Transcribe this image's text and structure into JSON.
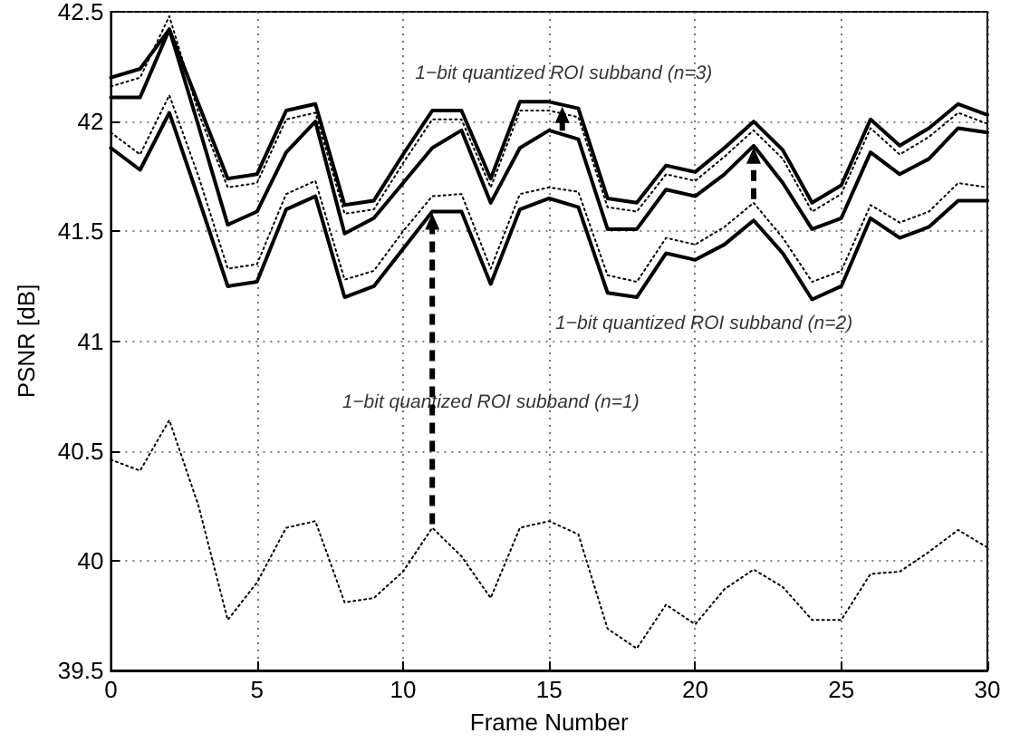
{
  "chart_data": {
    "type": "line",
    "xlabel": "Frame Number",
    "ylabel": "PSNR [dB]",
    "x": [
      0,
      1,
      2,
      3,
      4,
      5,
      6,
      7,
      8,
      9,
      10,
      11,
      12,
      13,
      14,
      15,
      16,
      17,
      18,
      19,
      20,
      21,
      22,
      23,
      24,
      25,
      26,
      27,
      28,
      29,
      30
    ],
    "series": [
      {
        "color": "#000000",
        "line_style": "solid",
        "values": [
          42.2,
          42.24,
          42.42,
          42.08,
          41.74,
          41.76,
          42.05,
          42.08,
          41.62,
          41.64,
          41.85,
          42.05,
          42.05,
          41.74,
          42.09,
          42.09,
          42.06,
          41.65,
          41.63,
          41.8,
          41.77,
          41.88,
          42.0,
          41.87,
          41.63,
          41.71,
          42.01,
          41.89,
          41.97,
          42.08,
          42.03
        ]
      },
      {
        "color": "#000000",
        "line_style": "dotted",
        "values": [
          42.16,
          42.2,
          42.48,
          42.04,
          41.7,
          41.72,
          42.01,
          42.04,
          41.58,
          41.6,
          41.81,
          42.01,
          42.01,
          41.7,
          42.05,
          42.05,
          42.02,
          41.61,
          41.59,
          41.76,
          41.73,
          41.84,
          41.96,
          41.83,
          41.59,
          41.67,
          41.97,
          41.85,
          41.93,
          42.04,
          41.99
        ]
      },
      {
        "color": "#000000",
        "line_style": "solid",
        "values": [
          42.11,
          42.11,
          42.42,
          41.98,
          41.53,
          41.59,
          41.86,
          42.0,
          41.49,
          41.56,
          41.72,
          41.88,
          41.96,
          41.63,
          41.88,
          41.96,
          41.92,
          41.51,
          41.51,
          41.69,
          41.66,
          41.76,
          41.89,
          41.72,
          41.51,
          41.56,
          41.86,
          41.76,
          41.83,
          41.97,
          41.95
        ]
      },
      {
        "color": "#000000",
        "line_style": "dotted",
        "values": [
          41.95,
          41.85,
          42.12,
          41.75,
          41.33,
          41.35,
          41.67,
          41.73,
          41.28,
          41.32,
          41.5,
          41.66,
          41.67,
          41.33,
          41.67,
          41.7,
          41.68,
          41.3,
          41.27,
          41.47,
          41.44,
          41.52,
          41.63,
          41.47,
          41.27,
          41.32,
          41.62,
          41.54,
          41.59,
          41.72,
          41.7
        ]
      },
      {
        "color": "#000000",
        "line_style": "solid",
        "values": [
          41.88,
          41.78,
          42.04,
          41.65,
          41.25,
          41.27,
          41.6,
          41.66,
          41.2,
          41.25,
          41.42,
          41.59,
          41.59,
          41.26,
          41.6,
          41.65,
          41.61,
          41.22,
          41.2,
          41.4,
          41.37,
          41.44,
          41.55,
          41.4,
          41.19,
          41.25,
          41.56,
          41.47,
          41.52,
          41.64,
          41.64
        ]
      },
      {
        "color": "#000000",
        "line_style": "dotted",
        "values": [
          40.46,
          40.41,
          40.64,
          40.25,
          39.73,
          39.9,
          40.15,
          40.18,
          39.81,
          39.83,
          39.95,
          40.15,
          40.02,
          39.83,
          40.15,
          40.18,
          40.12,
          39.69,
          39.6,
          39.8,
          39.71,
          39.87,
          39.96,
          39.88,
          39.73,
          39.73,
          39.94,
          39.95,
          40.04,
          40.14,
          40.06
        ]
      }
    ],
    "annotations": [
      "1−bit quantized ROI subband (n=3)",
      "1−bit quantized ROI subband (n=2)",
      "1−bit quantized ROI subband (n=1)"
    ],
    "xlim": [
      0,
      30
    ],
    "xticks": [
      0,
      5,
      10,
      15,
      20,
      25,
      30
    ],
    "ylim": [
      39.5,
      42.5
    ],
    "yticks": [
      39.5,
      40,
      40.5,
      41,
      41.5,
      42,
      42.5
    ],
    "grid": true,
    "marker": "none"
  }
}
